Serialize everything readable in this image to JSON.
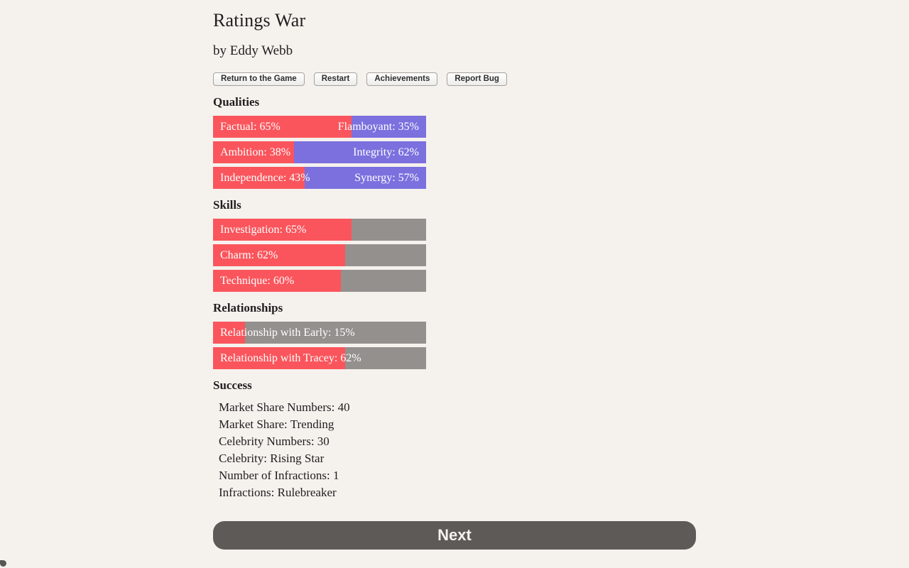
{
  "page": {
    "title": "Ratings War",
    "byline": "by Eddy Webb"
  },
  "toolbar": {
    "return_label": "Return to the Game",
    "restart_label": "Restart",
    "achievements_label": "Achievements",
    "report_bug_label": "Report Bug"
  },
  "qualities": {
    "heading": "Qualities",
    "bars": [
      {
        "left_label": "Factual: 65%",
        "right_label": "Flamboyant: 35%",
        "left_value": 65,
        "right_value": 35
      },
      {
        "left_label": "Ambition: 38%",
        "right_label": "Integrity: 62%",
        "left_value": 38,
        "right_value": 62
      },
      {
        "left_label": "Independence: 43%",
        "right_label": "Synergy: 57%",
        "left_value": 43,
        "right_value": 57
      }
    ]
  },
  "skills": {
    "heading": "Skills",
    "bars": [
      {
        "label": "Investigation: 65%",
        "value": 65
      },
      {
        "label": "Charm: 62%",
        "value": 62
      },
      {
        "label": "Technique: 60%",
        "value": 60
      }
    ]
  },
  "relationships": {
    "heading": "Relationships",
    "bars": [
      {
        "label": "Relationship with Early: 15%",
        "value": 15
      },
      {
        "label": "Relationship with Tracey: 62%",
        "value": 62
      }
    ]
  },
  "success": {
    "heading": "Success",
    "items": [
      "Market Share Numbers: 40",
      "Market Share: Trending",
      "Celebrity Numbers: 30",
      "Celebrity: Rising Star",
      "Number of Infractions: 1",
      "Infractions: Rulebreaker"
    ]
  },
  "footer": {
    "next_label": "Next"
  },
  "colors": {
    "background": "#f5f1ed",
    "bar_fill_red": "#fa555c",
    "bar_opposed_purple": "#7b70de",
    "bar_empty_gray": "#94908e",
    "next_button": "#5e5a57",
    "text": "#1f1f1f"
  }
}
